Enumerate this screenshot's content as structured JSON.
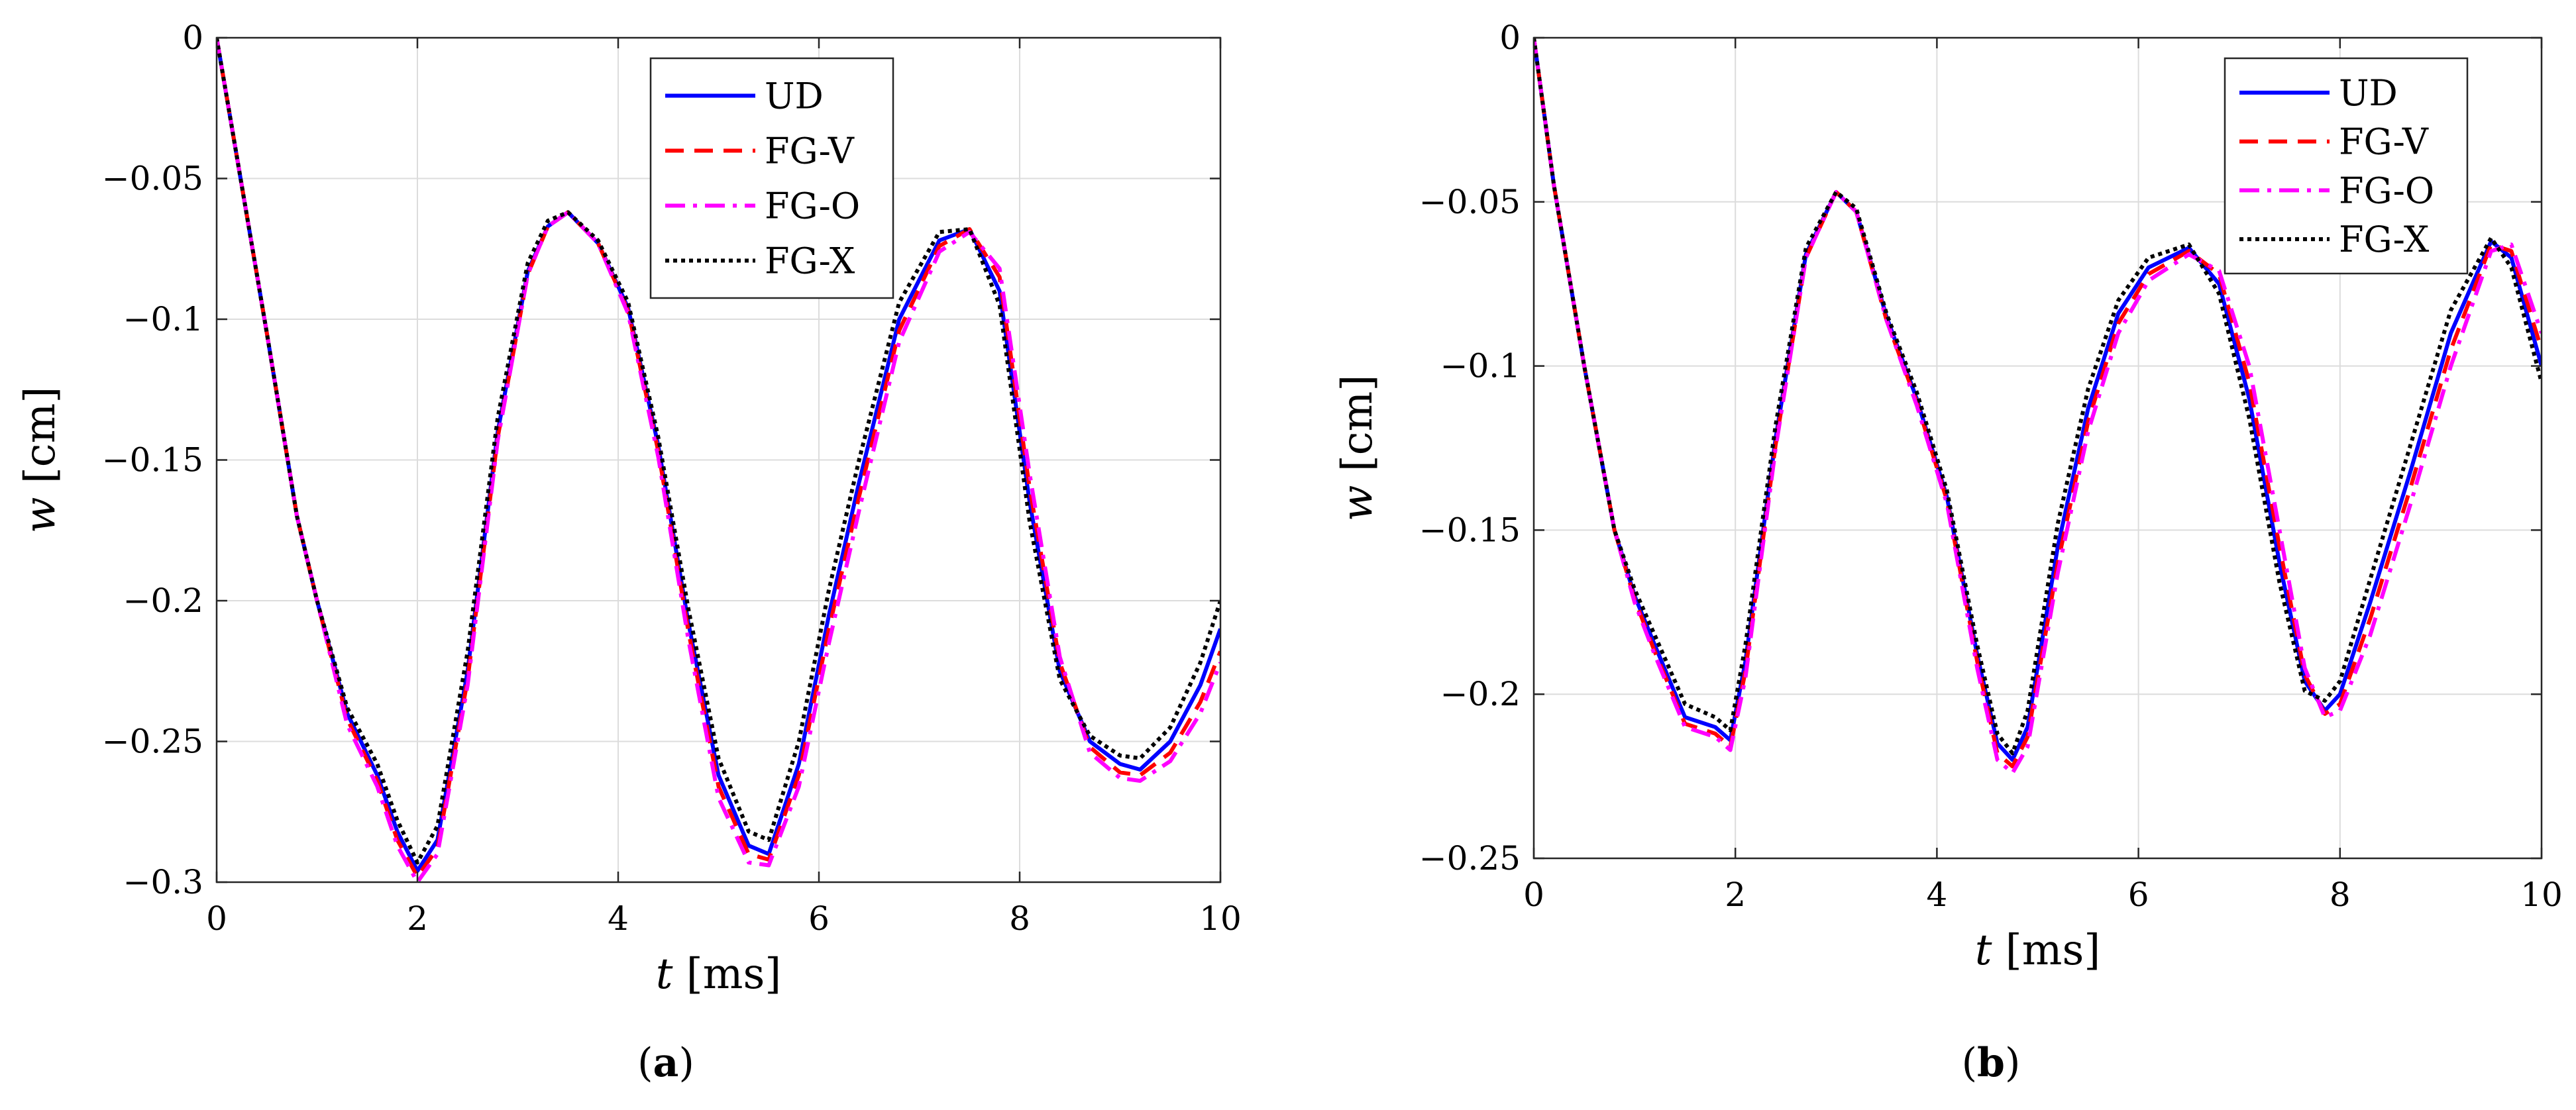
{
  "chart_data": [
    {
      "type": "line",
      "caption": "(a)",
      "xlabel": {
        "symbol": "t",
        "unit": "[ms]"
      },
      "ylabel": {
        "symbol": "w",
        "unit": "[cm]"
      },
      "xlim": [
        0,
        10
      ],
      "ylim": [
        -0.3,
        0
      ],
      "xticks": [
        0,
        2,
        4,
        6,
        8,
        10
      ],
      "xtick_labels": [
        "0",
        "2",
        "4",
        "6",
        "8",
        "10"
      ],
      "yticks": [
        0,
        -0.05,
        -0.1,
        -0.15,
        -0.2,
        -0.25,
        -0.3
      ],
      "ytick_labels": [
        "0",
        "−0.05",
        "−0.1",
        "−0.15",
        "−0.2",
        "−0.25",
        "−0.3"
      ],
      "grid": true,
      "legend_position": "top-right",
      "series": [
        {
          "name": "UD",
          "color": "#0000ff",
          "style": "solid",
          "x": [
            0,
            0.2,
            0.5,
            0.8,
            1.0,
            1.3,
            1.6,
            1.8,
            2.0,
            2.2,
            2.5,
            2.8,
            3.1,
            3.3,
            3.5,
            3.8,
            4.1,
            4.4,
            4.7,
            5.0,
            5.3,
            5.5,
            5.8,
            6.1,
            6.4,
            6.8,
            7.2,
            7.5,
            7.8,
            8.1,
            8.4,
            8.7,
            9.0,
            9.2,
            9.5,
            9.8,
            10.0
          ],
          "y": [
            0,
            -0.042,
            -0.105,
            -0.17,
            -0.2,
            -0.24,
            -0.262,
            -0.282,
            -0.296,
            -0.285,
            -0.225,
            -0.14,
            -0.083,
            -0.067,
            -0.062,
            -0.073,
            -0.096,
            -0.145,
            -0.208,
            -0.262,
            -0.287,
            -0.29,
            -0.258,
            -0.205,
            -0.158,
            -0.1,
            -0.072,
            -0.068,
            -0.09,
            -0.165,
            -0.225,
            -0.25,
            -0.258,
            -0.26,
            -0.25,
            -0.23,
            -0.21
          ]
        },
        {
          "name": "FG-V",
          "color": "#ff0000",
          "style": "dashed",
          "x": [
            0,
            0.2,
            0.5,
            0.8,
            1.0,
            1.3,
            1.6,
            1.8,
            2.0,
            2.2,
            2.5,
            2.8,
            3.1,
            3.3,
            3.5,
            3.8,
            4.1,
            4.4,
            4.7,
            5.0,
            5.3,
            5.5,
            5.8,
            6.1,
            6.4,
            6.8,
            7.2,
            7.5,
            7.8,
            8.1,
            8.4,
            8.7,
            9.0,
            9.2,
            9.5,
            9.8,
            10.0
          ],
          "y": [
            0,
            -0.042,
            -0.105,
            -0.17,
            -0.2,
            -0.242,
            -0.264,
            -0.285,
            -0.298,
            -0.288,
            -0.228,
            -0.142,
            -0.084,
            -0.067,
            -0.062,
            -0.073,
            -0.097,
            -0.147,
            -0.211,
            -0.266,
            -0.29,
            -0.292,
            -0.262,
            -0.21,
            -0.163,
            -0.104,
            -0.074,
            -0.068,
            -0.085,
            -0.16,
            -0.222,
            -0.252,
            -0.261,
            -0.262,
            -0.254,
            -0.236,
            -0.218
          ]
        },
        {
          "name": "FG-O",
          "color": "#ff00ff",
          "style": "dashdot",
          "x": [
            0,
            0.2,
            0.5,
            0.8,
            1.0,
            1.3,
            1.6,
            1.8,
            2.0,
            2.2,
            2.5,
            2.8,
            3.1,
            3.3,
            3.5,
            3.8,
            4.1,
            4.4,
            4.7,
            5.0,
            5.3,
            5.5,
            5.8,
            6.1,
            6.4,
            6.8,
            7.2,
            7.5,
            7.8,
            8.1,
            8.4,
            8.7,
            9.0,
            9.2,
            9.5,
            9.8,
            10.0
          ],
          "y": [
            0,
            -0.042,
            -0.105,
            -0.17,
            -0.2,
            -0.244,
            -0.266,
            -0.287,
            -0.3,
            -0.29,
            -0.23,
            -0.143,
            -0.084,
            -0.067,
            -0.062,
            -0.073,
            -0.098,
            -0.149,
            -0.214,
            -0.27,
            -0.293,
            -0.294,
            -0.266,
            -0.215,
            -0.168,
            -0.108,
            -0.076,
            -0.069,
            -0.082,
            -0.155,
            -0.22,
            -0.254,
            -0.263,
            -0.264,
            -0.257,
            -0.24,
            -0.222
          ]
        },
        {
          "name": "FG-X",
          "color": "#000000",
          "style": "dotted",
          "x": [
            0,
            0.2,
            0.5,
            0.8,
            1.0,
            1.3,
            1.6,
            1.8,
            2.0,
            2.2,
            2.5,
            2.8,
            3.1,
            3.3,
            3.5,
            3.8,
            4.1,
            4.4,
            4.7,
            5.0,
            5.3,
            5.5,
            5.8,
            6.1,
            6.4,
            6.8,
            7.2,
            7.5,
            7.8,
            8.1,
            8.4,
            8.7,
            9.0,
            9.2,
            9.5,
            9.8,
            10.0
          ],
          "y": [
            0,
            -0.042,
            -0.105,
            -0.17,
            -0.2,
            -0.238,
            -0.258,
            -0.278,
            -0.293,
            -0.28,
            -0.218,
            -0.135,
            -0.08,
            -0.065,
            -0.062,
            -0.072,
            -0.094,
            -0.142,
            -0.203,
            -0.256,
            -0.282,
            -0.285,
            -0.25,
            -0.196,
            -0.15,
            -0.094,
            -0.069,
            -0.068,
            -0.095,
            -0.172,
            -0.228,
            -0.248,
            -0.255,
            -0.256,
            -0.245,
            -0.222,
            -0.2
          ]
        }
      ]
    },
    {
      "type": "line",
      "caption": "(b)",
      "xlabel": {
        "symbol": "t",
        "unit": "[ms]"
      },
      "ylabel": {
        "symbol": "w",
        "unit": "[cm]"
      },
      "xlim": [
        0,
        10
      ],
      "ylim": [
        -0.25,
        0
      ],
      "xticks": [
        0,
        2,
        4,
        6,
        8,
        10
      ],
      "xtick_labels": [
        "0",
        "2",
        "4",
        "6",
        "8",
        "10"
      ],
      "yticks": [
        0,
        -0.05,
        -0.1,
        -0.15,
        -0.2,
        -0.25
      ],
      "ytick_labels": [
        "0",
        "−0.05",
        "−0.1",
        "−0.15",
        "−0.2",
        "−0.25"
      ],
      "grid": true,
      "legend_position": "top-right",
      "series": [
        {
          "name": "UD",
          "color": "#0000ff",
          "style": "solid",
          "x": [
            0,
            0.2,
            0.5,
            0.8,
            1.0,
            1.2,
            1.5,
            1.8,
            1.95,
            2.1,
            2.4,
            2.7,
            3.0,
            3.2,
            3.5,
            3.8,
            4.1,
            4.4,
            4.6,
            4.75,
            4.9,
            5.2,
            5.5,
            5.8,
            6.1,
            6.5,
            6.8,
            7.1,
            7.4,
            7.65,
            7.85,
            8.0,
            8.3,
            8.7,
            9.1,
            9.5,
            9.7,
            10.0
          ],
          "y": [
            0,
            -0.045,
            -0.1,
            -0.15,
            -0.17,
            -0.185,
            -0.207,
            -0.21,
            -0.214,
            -0.19,
            -0.122,
            -0.066,
            -0.047,
            -0.053,
            -0.085,
            -0.11,
            -0.14,
            -0.188,
            -0.215,
            -0.22,
            -0.21,
            -0.155,
            -0.113,
            -0.084,
            -0.07,
            -0.064,
            -0.075,
            -0.11,
            -0.16,
            -0.196,
            -0.205,
            -0.2,
            -0.172,
            -0.132,
            -0.09,
            -0.062,
            -0.067,
            -0.1
          ]
        },
        {
          "name": "FG-V",
          "color": "#ff0000",
          "style": "dashed",
          "x": [
            0,
            0.2,
            0.5,
            0.8,
            1.0,
            1.2,
            1.5,
            1.8,
            1.95,
            2.1,
            2.4,
            2.7,
            3.0,
            3.2,
            3.5,
            3.8,
            4.1,
            4.4,
            4.6,
            4.75,
            4.9,
            5.2,
            5.5,
            5.8,
            6.1,
            6.5,
            6.8,
            7.1,
            7.4,
            7.65,
            7.85,
            8.0,
            8.3,
            8.7,
            9.1,
            9.5,
            9.7,
            10.0
          ],
          "y": [
            0,
            -0.045,
            -0.1,
            -0.15,
            -0.171,
            -0.187,
            -0.209,
            -0.212,
            -0.216,
            -0.193,
            -0.124,
            -0.067,
            -0.047,
            -0.053,
            -0.086,
            -0.111,
            -0.141,
            -0.19,
            -0.218,
            -0.222,
            -0.213,
            -0.16,
            -0.117,
            -0.087,
            -0.072,
            -0.065,
            -0.072,
            -0.105,
            -0.155,
            -0.194,
            -0.206,
            -0.203,
            -0.177,
            -0.137,
            -0.095,
            -0.063,
            -0.065,
            -0.095
          ]
        },
        {
          "name": "FG-O",
          "color": "#ff00ff",
          "style": "dashdot",
          "x": [
            0,
            0.2,
            0.5,
            0.8,
            1.0,
            1.2,
            1.5,
            1.8,
            1.95,
            2.1,
            2.4,
            2.7,
            3.0,
            3.2,
            3.5,
            3.8,
            4.1,
            4.4,
            4.6,
            4.75,
            4.9,
            5.2,
            5.5,
            5.8,
            6.1,
            6.5,
            6.8,
            7.1,
            7.4,
            7.65,
            7.85,
            8.0,
            8.3,
            8.7,
            9.1,
            9.5,
            9.7,
            10.0
          ],
          "y": [
            0,
            -0.045,
            -0.1,
            -0.15,
            -0.172,
            -0.188,
            -0.21,
            -0.213,
            -0.217,
            -0.195,
            -0.125,
            -0.067,
            -0.047,
            -0.053,
            -0.086,
            -0.112,
            -0.142,
            -0.192,
            -0.22,
            -0.224,
            -0.216,
            -0.163,
            -0.12,
            -0.09,
            -0.074,
            -0.066,
            -0.071,
            -0.1,
            -0.15,
            -0.192,
            -0.207,
            -0.205,
            -0.182,
            -0.142,
            -0.1,
            -0.065,
            -0.063,
            -0.09
          ]
        },
        {
          "name": "FG-X",
          "color": "#000000",
          "style": "dotted",
          "x": [
            0,
            0.2,
            0.5,
            0.8,
            1.0,
            1.2,
            1.5,
            1.8,
            1.95,
            2.1,
            2.4,
            2.7,
            3.0,
            3.2,
            3.5,
            3.8,
            4.1,
            4.4,
            4.6,
            4.75,
            4.9,
            5.2,
            5.5,
            5.8,
            6.1,
            6.5,
            6.8,
            7.1,
            7.4,
            7.65,
            7.85,
            8.0,
            8.3,
            8.7,
            9.1,
            9.5,
            9.7,
            10.0
          ],
          "y": [
            0,
            -0.045,
            -0.1,
            -0.15,
            -0.168,
            -0.182,
            -0.203,
            -0.207,
            -0.211,
            -0.185,
            -0.118,
            -0.064,
            -0.047,
            -0.052,
            -0.084,
            -0.108,
            -0.138,
            -0.185,
            -0.212,
            -0.218,
            -0.205,
            -0.148,
            -0.107,
            -0.08,
            -0.067,
            -0.063,
            -0.078,
            -0.116,
            -0.166,
            -0.199,
            -0.202,
            -0.196,
            -0.165,
            -0.124,
            -0.083,
            -0.061,
            -0.07,
            -0.105
          ]
        }
      ]
    }
  ]
}
